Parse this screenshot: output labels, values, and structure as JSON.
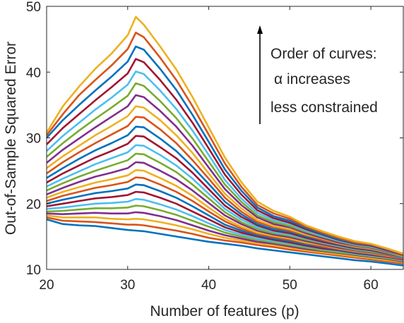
{
  "chart_data": {
    "type": "line",
    "xlabel": "Number of features (p)",
    "ylabel": "Out-of-Sample Squared Error",
    "xlim": [
      20,
      64
    ],
    "ylim": [
      10,
      50
    ],
    "xticks": [
      "20",
      "30",
      "40",
      "50",
      "60"
    ],
    "yticks": [
      "10",
      "20",
      "30",
      "40",
      "50"
    ],
    "grid": false,
    "annotation": {
      "lines": [
        "Order of curves:",
        "α increases",
        "less constrained"
      ],
      "arrow": "up"
    },
    "series_colors": [
      "#0072BD",
      "#D95319",
      "#EDB120",
      "#7E2F8E",
      "#77AC30",
      "#4DBEEE",
      "#A2142F"
    ],
    "x": [
      20,
      22,
      24,
      26,
      28,
      30,
      31,
      32,
      34,
      36,
      38,
      40,
      42,
      44,
      46,
      48,
      50,
      52,
      54,
      56,
      58,
      60,
      62,
      64
    ],
    "series": [
      {
        "values": [
          17.6,
          16.9,
          16.7,
          16.6,
          16.3,
          16.0,
          15.9,
          15.8,
          15.4,
          15.0,
          14.6,
          14.2,
          13.9,
          13.6,
          13.2,
          12.9,
          12.6,
          12.3,
          12.0,
          11.7,
          11.4,
          11.2,
          10.9,
          10.6
        ]
      },
      {
        "values": [
          17.9,
          17.4,
          17.3,
          17.2,
          17.0,
          16.8,
          16.8,
          16.7,
          16.3,
          15.9,
          15.4,
          14.8,
          14.4,
          14.1,
          13.7,
          13.4,
          13.0,
          12.7,
          12.4,
          12.1,
          11.8,
          11.5,
          11.2,
          10.9
        ]
      },
      {
        "values": [
          18.2,
          17.9,
          17.9,
          17.9,
          17.7,
          17.6,
          17.7,
          17.6,
          17.2,
          16.7,
          16.1,
          15.4,
          14.8,
          14.4,
          14.0,
          13.7,
          13.3,
          12.9,
          12.6,
          12.3,
          12.0,
          11.7,
          11.4,
          11.1
        ]
      },
      {
        "values": [
          18.5,
          18.4,
          18.5,
          18.6,
          18.5,
          18.5,
          18.7,
          18.6,
          18.1,
          17.5,
          16.7,
          15.9,
          15.2,
          14.7,
          14.2,
          13.9,
          13.5,
          13.1,
          12.8,
          12.5,
          12.2,
          11.9,
          11.6,
          11.2
        ]
      },
      {
        "values": [
          18.8,
          18.9,
          19.1,
          19.3,
          19.3,
          19.4,
          19.7,
          19.6,
          19.0,
          18.3,
          17.4,
          16.5,
          15.6,
          15.0,
          14.5,
          14.1,
          13.7,
          13.3,
          12.9,
          12.6,
          12.3,
          12.0,
          11.7,
          11.3
        ]
      },
      {
        "values": [
          19.2,
          19.4,
          19.7,
          20.0,
          20.1,
          20.3,
          20.7,
          20.6,
          19.9,
          19.1,
          18.1,
          17.0,
          16.0,
          15.3,
          14.7,
          14.3,
          13.9,
          13.5,
          13.1,
          12.8,
          12.4,
          12.1,
          11.8,
          11.4
        ]
      },
      {
        "values": [
          19.6,
          20.0,
          20.4,
          20.8,
          21.0,
          21.3,
          21.8,
          21.7,
          20.9,
          20.0,
          18.8,
          17.6,
          16.4,
          15.6,
          15.0,
          14.5,
          14.1,
          13.6,
          13.2,
          12.9,
          12.5,
          12.2,
          11.9,
          11.5
        ]
      },
      {
        "values": [
          20.0,
          20.6,
          21.1,
          21.6,
          21.9,
          22.3,
          22.9,
          22.8,
          21.9,
          20.9,
          19.6,
          18.2,
          16.8,
          15.9,
          15.2,
          14.7,
          14.3,
          13.8,
          13.4,
          13.0,
          12.6,
          12.3,
          12.0,
          11.6
        ]
      },
      {
        "values": [
          20.4,
          21.2,
          21.8,
          22.4,
          22.8,
          23.3,
          24.0,
          23.9,
          22.9,
          21.8,
          20.4,
          18.8,
          17.3,
          16.2,
          15.4,
          14.9,
          14.5,
          14.0,
          13.5,
          13.1,
          12.7,
          12.4,
          12.0,
          11.6
        ]
      },
      {
        "values": [
          20.9,
          21.8,
          22.5,
          23.2,
          23.7,
          24.3,
          25.1,
          25.0,
          23.9,
          22.7,
          21.2,
          19.4,
          17.7,
          16.5,
          15.6,
          15.1,
          14.7,
          14.1,
          13.7,
          13.2,
          12.8,
          12.5,
          12.1,
          11.7
        ]
      },
      {
        "values": [
          21.4,
          22.4,
          23.3,
          24.1,
          24.7,
          25.4,
          26.3,
          26.2,
          25.0,
          23.7,
          22.0,
          20.1,
          18.2,
          16.9,
          15.9,
          15.3,
          14.9,
          14.3,
          13.8,
          13.3,
          12.9,
          12.6,
          12.2,
          11.7
        ]
      },
      {
        "values": [
          22.0,
          23.1,
          24.1,
          25.0,
          25.8,
          26.6,
          27.6,
          27.5,
          26.2,
          24.8,
          22.9,
          20.8,
          18.7,
          17.2,
          16.1,
          15.5,
          15.1,
          14.5,
          14.0,
          13.5,
          13.0,
          12.7,
          12.3,
          11.8
        ]
      },
      {
        "values": [
          22.6,
          23.8,
          24.9,
          26.0,
          26.9,
          27.8,
          28.9,
          28.8,
          27.4,
          25.8,
          23.8,
          21.5,
          19.2,
          17.6,
          16.4,
          15.7,
          15.3,
          14.7,
          14.1,
          13.6,
          13.1,
          12.8,
          12.4,
          11.8
        ]
      },
      {
        "values": [
          23.2,
          24.6,
          25.8,
          27.0,
          28.0,
          29.1,
          30.3,
          30.2,
          28.6,
          26.9,
          24.7,
          22.2,
          19.7,
          18.0,
          16.7,
          15.9,
          15.5,
          14.8,
          14.2,
          13.7,
          13.2,
          12.9,
          12.4,
          11.9
        ]
      },
      {
        "values": [
          23.9,
          25.4,
          26.8,
          28.1,
          29.2,
          30.4,
          31.7,
          31.6,
          29.9,
          28.0,
          25.6,
          23.0,
          20.3,
          18.4,
          16.9,
          16.1,
          15.7,
          15.0,
          14.4,
          13.8,
          13.3,
          13.0,
          12.5,
          11.9
        ]
      },
      {
        "values": [
          24.6,
          26.3,
          27.8,
          29.2,
          30.5,
          31.8,
          33.2,
          33.1,
          31.3,
          29.2,
          26.6,
          23.8,
          20.9,
          18.8,
          17.2,
          16.4,
          15.9,
          15.2,
          14.5,
          13.9,
          13.4,
          13.1,
          12.6,
          12.0
        ]
      },
      {
        "values": [
          25.4,
          27.2,
          28.8,
          30.4,
          31.8,
          33.3,
          34.8,
          34.6,
          32.7,
          30.4,
          27.7,
          24.6,
          21.5,
          19.3,
          17.5,
          16.6,
          16.1,
          15.3,
          14.7,
          14.0,
          13.5,
          13.2,
          12.6,
          12.0
        ]
      },
      {
        "values": [
          26.2,
          28.2,
          29.9,
          31.6,
          33.2,
          34.8,
          36.5,
          36.2,
          34.1,
          31.7,
          28.8,
          25.5,
          22.2,
          19.8,
          17.9,
          16.9,
          16.4,
          15.5,
          14.8,
          14.1,
          13.6,
          13.3,
          12.7,
          12.1
        ]
      },
      {
        "values": [
          27.1,
          29.2,
          31.1,
          32.9,
          34.6,
          36.4,
          38.3,
          37.9,
          35.6,
          33.0,
          29.9,
          26.4,
          22.9,
          20.3,
          18.2,
          17.2,
          16.6,
          15.7,
          15.0,
          14.3,
          13.7,
          13.4,
          12.8,
          12.1
        ]
      },
      {
        "values": [
          28.0,
          30.3,
          32.3,
          34.3,
          36.1,
          38.1,
          40.1,
          39.7,
          37.2,
          34.4,
          31.1,
          27.4,
          23.6,
          20.8,
          18.6,
          17.5,
          16.9,
          15.9,
          15.1,
          14.4,
          13.8,
          13.5,
          12.8,
          12.2
        ]
      },
      {
        "values": [
          29.0,
          31.5,
          33.6,
          35.7,
          37.7,
          39.8,
          42.0,
          41.5,
          38.8,
          35.8,
          32.3,
          28.4,
          24.4,
          21.4,
          19.0,
          17.8,
          17.1,
          16.1,
          15.3,
          14.5,
          13.9,
          13.6,
          12.9,
          12.2
        ]
      },
      {
        "values": [
          30.0,
          32.7,
          35.0,
          37.2,
          39.3,
          41.6,
          43.9,
          43.4,
          40.5,
          37.3,
          33.5,
          29.4,
          25.2,
          22.0,
          19.4,
          18.1,
          17.4,
          16.3,
          15.4,
          14.6,
          14.0,
          13.7,
          13.0,
          12.3
        ]
      },
      {
        "values": [
          30.4,
          33.6,
          36.5,
          38.8,
          41.0,
          43.5,
          46.0,
          45.3,
          42.2,
          38.8,
          34.8,
          30.5,
          26.1,
          22.6,
          19.8,
          18.5,
          17.7,
          16.5,
          15.6,
          14.8,
          14.1,
          13.8,
          13.1,
          12.3
        ]
      },
      {
        "values": [
          30.8,
          34.8,
          37.8,
          40.5,
          42.8,
          45.6,
          48.4,
          47.2,
          43.9,
          40.4,
          36.2,
          31.6,
          27.0,
          23.3,
          20.3,
          18.9,
          18.0,
          16.7,
          15.8,
          15.0,
          14.3,
          13.9,
          13.2,
          12.4
        ]
      }
    ]
  }
}
